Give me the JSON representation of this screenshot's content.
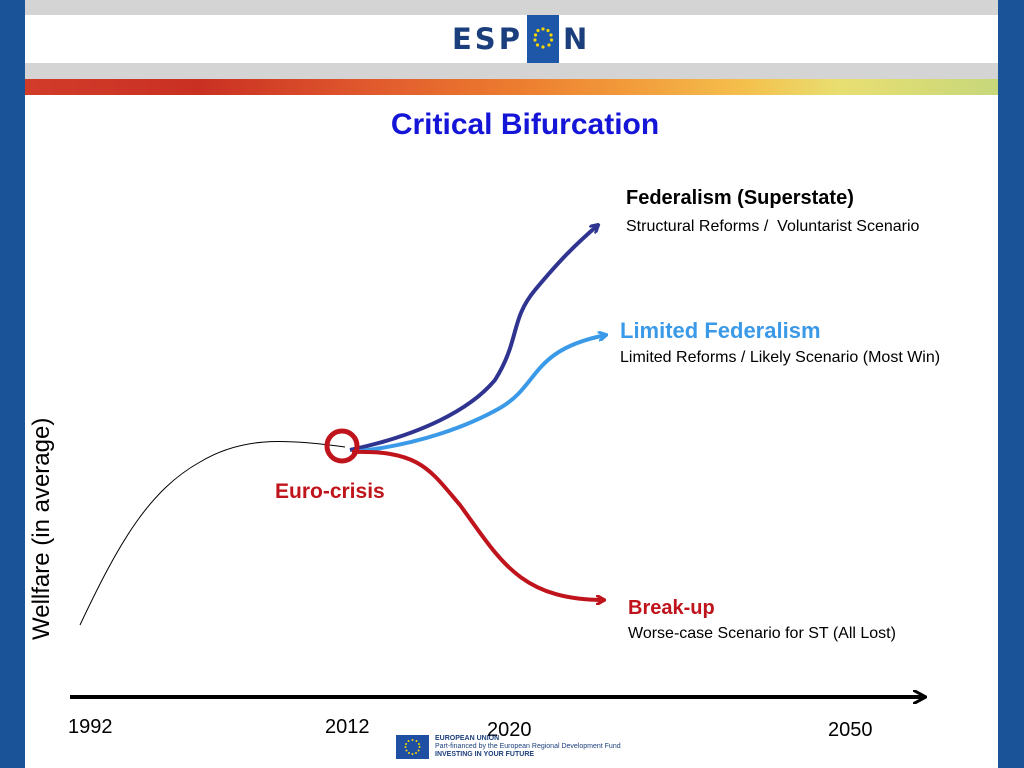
{
  "header": {
    "logo_left": "ESP",
    "logo_right": "N"
  },
  "slide": {
    "title": "Critical Bifurcation",
    "y_axis_label": "Wellfare (in average)",
    "crisis_label": "Euro-crisis",
    "years": [
      "1992",
      "2012",
      "2020",
      "2050"
    ],
    "branches": [
      {
        "title": "Federalism (Superstate)",
        "subtitle": "Structural Reforms /  Voluntarist Scenario"
      },
      {
        "title": "Limited Federalism",
        "subtitle": "Limited Reforms / Likely Scenario (Most Win)"
      },
      {
        "title": "Break-up",
        "subtitle": "Worse-case Scenario for ST (All Lost)"
      }
    ]
  },
  "colors": {
    "title": "#1515d8",
    "federalism": "#2e3490",
    "limited_federalism": "#3b9ae8",
    "break_up": "#c0141c",
    "crisis": "#c0141c",
    "sidebar": "#1b5399"
  },
  "footer": {
    "line1": "EUROPEAN UNION",
    "line2": "Part-financed by the European Regional Development Fund",
    "line3": "INVESTING IN YOUR FUTURE"
  }
}
